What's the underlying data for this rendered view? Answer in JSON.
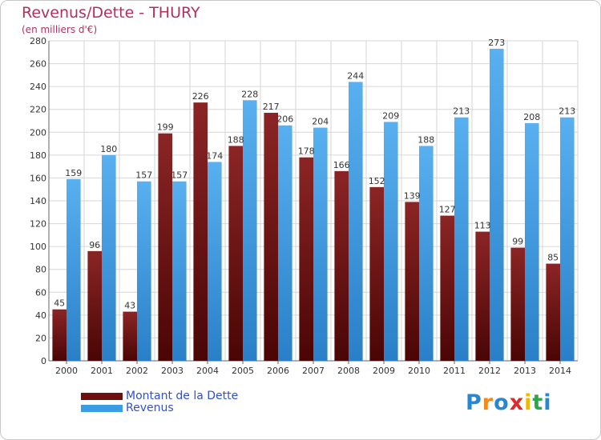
{
  "header": {
    "title": "Revenus/Dette - THURY",
    "subtitle": "(en milliers d'€)"
  },
  "chart_data": {
    "type": "bar",
    "categories": [
      "2000",
      "2001",
      "2002",
      "2003",
      "2004",
      "2005",
      "2006",
      "2007",
      "2008",
      "2009",
      "2010",
      "2011",
      "2012",
      "2013",
      "2014"
    ],
    "series": [
      {
        "name": "Montant de la Dette",
        "values": [
          45,
          96,
          43,
          199,
          226,
          188,
          217,
          178,
          166,
          152,
          139,
          127,
          113,
          99,
          85
        ],
        "color": "#8b1a1a"
      },
      {
        "name": "Revenus",
        "values": [
          159,
          180,
          157,
          157,
          174,
          228,
          206,
          204,
          244,
          209,
          188,
          213,
          273,
          208,
          213
        ],
        "color": "#3a9ce4"
      }
    ],
    "title": "Revenus/Dette - THURY",
    "ylabel": "(en milliers d'€)",
    "ylim": [
      0,
      280
    ],
    "yticks": [
      0,
      20,
      40,
      60,
      80,
      100,
      120,
      140,
      160,
      180,
      200,
      220,
      240,
      260,
      280
    ],
    "grid": true,
    "legend": "bottom-left"
  },
  "legend": {
    "items": [
      {
        "label": "Montant de la Dette",
        "color": "#6e0f0f"
      },
      {
        "label": "Revenus",
        "color": "#3a9ce4"
      }
    ]
  },
  "logo": {
    "letters": [
      {
        "ch": "P",
        "color": "#2a86d0"
      },
      {
        "ch": "r",
        "color": "#f08a1c"
      },
      {
        "ch": "o",
        "color": "#2a86d0"
      },
      {
        "ch": "x",
        "color": "#e02a2a"
      },
      {
        "ch": "i",
        "color": "#f0b800"
      },
      {
        "ch": "t",
        "color": "#2aa84a"
      },
      {
        "ch": "i",
        "color": "#2a86d0"
      }
    ]
  }
}
